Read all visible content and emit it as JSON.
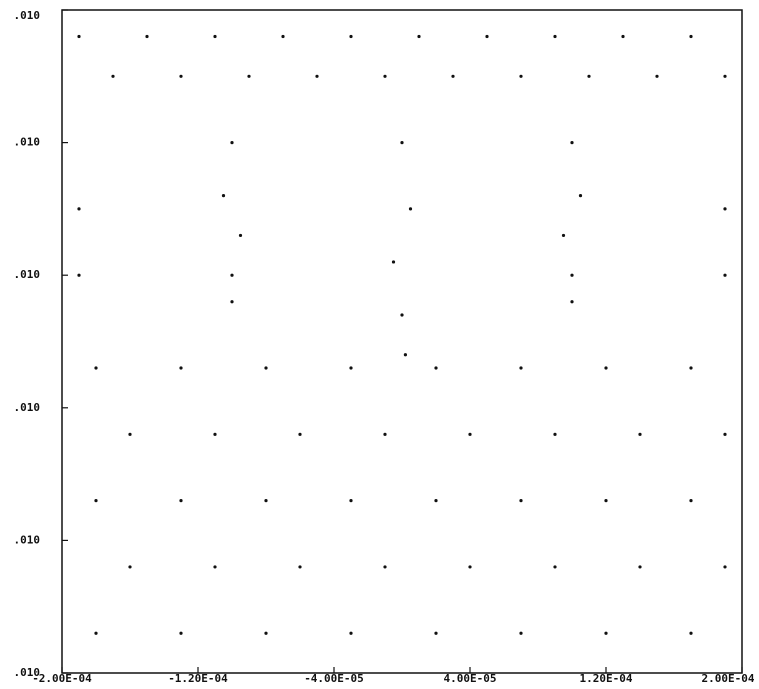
{
  "chart_data": {
    "type": "scatter",
    "color": "#111111",
    "x": [
      -0.00019,
      -0.00015,
      -0.00011,
      -7e-05,
      -3e-05,
      1e-05,
      5e-05,
      9e-05,
      0.00013,
      0.00017,
      -0.00017,
      -0.00013,
      -9e-05,
      -5e-05,
      -1e-05,
      3e-05,
      7e-05,
      0.00011,
      0.00015,
      0.00019,
      -0.0001,
      -0.000105,
      -9.5e-05,
      -0.0001,
      -0.0001,
      0,
      5e-06,
      -5e-06,
      0,
      2e-06,
      0.0001,
      0.000105,
      9.5e-05,
      0.0001,
      0.0001,
      -0.00018,
      -0.00013,
      -8e-05,
      -3e-05,
      2e-05,
      7e-05,
      0.00012,
      0.00017,
      -0.00016,
      -0.00011,
      -6e-05,
      -1e-05,
      4e-05,
      9e-05,
      0.00014,
      0.00019,
      -0.00018,
      -0.00013,
      -8e-05,
      -3e-05,
      2e-05,
      7e-05,
      0.00012,
      0.00017,
      -0.00016,
      -0.00011,
      -6e-05,
      -1e-05,
      4e-05,
      9e-05,
      0.00014,
      0.00019,
      -0.00018,
      -0.00013,
      -8e-05,
      -3e-05,
      2e-05,
      7e-05,
      0.00012,
      0.00017,
      -0.00019,
      0.00019,
      -0.00019,
      0.00019
    ],
    "values": [
      4.8,
      4.8,
      4.8,
      4.8,
      4.8,
      4.8,
      4.8,
      4.8,
      4.8,
      4.8,
      4.5,
      4.5,
      4.5,
      4.5,
      4.5,
      4.5,
      4.5,
      4.5,
      4.5,
      4.5,
      4.0,
      3.6,
      3.3,
      3.0,
      2.8,
      4.0,
      3.5,
      3.1,
      2.7,
      2.4,
      4.0,
      3.6,
      3.3,
      3.0,
      2.8,
      0.3,
      0.3,
      0.3,
      0.3,
      0.3,
      0.3,
      0.3,
      0.3,
      0.8,
      0.8,
      0.8,
      0.8,
      0.8,
      0.8,
      0.8,
      0.8,
      1.3,
      1.3,
      1.3,
      1.3,
      1.3,
      1.3,
      1.3,
      1.3,
      1.8,
      1.8,
      1.8,
      1.8,
      1.8,
      1.8,
      1.8,
      1.8,
      2.3,
      2.3,
      2.3,
      2.3,
      2.3,
      2.3,
      2.3,
      2.3,
      3.5,
      3.5,
      3.0,
      3.0
    ],
    "xlim": [
      -0.0002,
      0.0002
    ],
    "xticks": [
      {
        "value": -0.0002,
        "label": "-2.00E-04"
      },
      {
        "value": -0.00012,
        "label": "-1.20E-04"
      },
      {
        "value": -4e-05,
        "label": "-4.00E-05"
      },
      {
        "value": 4e-05,
        "label": "4.00E-05"
      },
      {
        "value": 0.00012,
        "label": "1.20E-04"
      },
      {
        "value": 0.0002,
        "label": "2.00E-04"
      }
    ],
    "ylim": [
      0,
      5
    ],
    "yticks": [
      {
        "value": 5,
        "label": ".010"
      },
      {
        "value": 4,
        "label": ".010"
      },
      {
        "value": 3,
        "label": ".010"
      },
      {
        "value": 2,
        "label": ".010"
      },
      {
        "value": 1,
        "label": ".010"
      },
      {
        "value": 0,
        "label": ".010"
      }
    ]
  }
}
